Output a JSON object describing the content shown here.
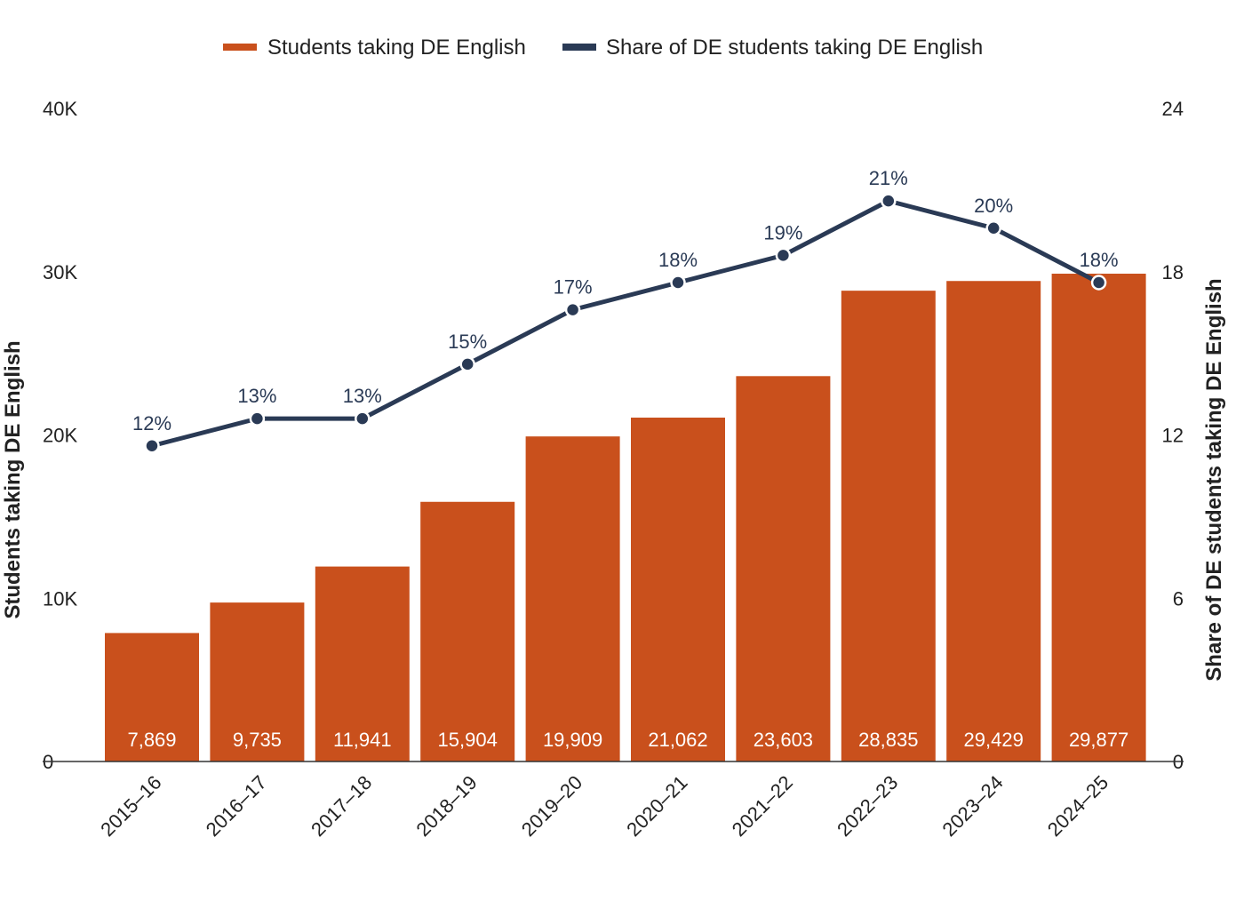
{
  "chart_data": {
    "type": "bar",
    "categories": [
      "2015–16",
      "2016–17",
      "2017–18",
      "2018–19",
      "2019–20",
      "2020–21",
      "2021–22",
      "2022–23",
      "2023–24",
      "2024–25"
    ],
    "series": [
      {
        "name": "Students taking DE English",
        "type": "bar",
        "axis": "left",
        "values": [
          7869,
          9735,
          11941,
          15904,
          19909,
          21062,
          23603,
          28835,
          29429,
          29877
        ],
        "labels": [
          "7,869",
          "9,735",
          "11,941",
          "15,904",
          "19,909",
          "21,062",
          "23,603",
          "28,835",
          "29,429",
          "29,877"
        ],
        "color": "#c9501c"
      },
      {
        "name": "Share of DE students taking DE English",
        "type": "line",
        "axis": "right",
        "values": [
          11.6,
          12.6,
          12.6,
          14.6,
          16.6,
          17.6,
          18.6,
          20.6,
          19.6,
          17.6
        ],
        "labels": [
          "12%",
          "13%",
          "13%",
          "15%",
          "17%",
          "18%",
          "19%",
          "21%",
          "20%",
          "18%"
        ],
        "color": "#2a3a55"
      }
    ],
    "y_left": {
      "label": "Students taking DE English",
      "ylim": [
        0,
        40000
      ],
      "ticks": [
        0,
        10000,
        20000,
        30000,
        40000
      ],
      "tick_labels": [
        "0",
        "10K",
        "20K",
        "30K",
        "40K"
      ]
    },
    "y_right": {
      "label": "Share of DE students taking DE English",
      "ylim": [
        0,
        24
      ],
      "ticks": [
        0,
        6,
        12,
        18,
        24
      ],
      "tick_labels": [
        "0",
        "6",
        "12",
        "18",
        "24"
      ]
    },
    "title": "",
    "xlabel": "",
    "grid": false,
    "legend": "top-center"
  }
}
